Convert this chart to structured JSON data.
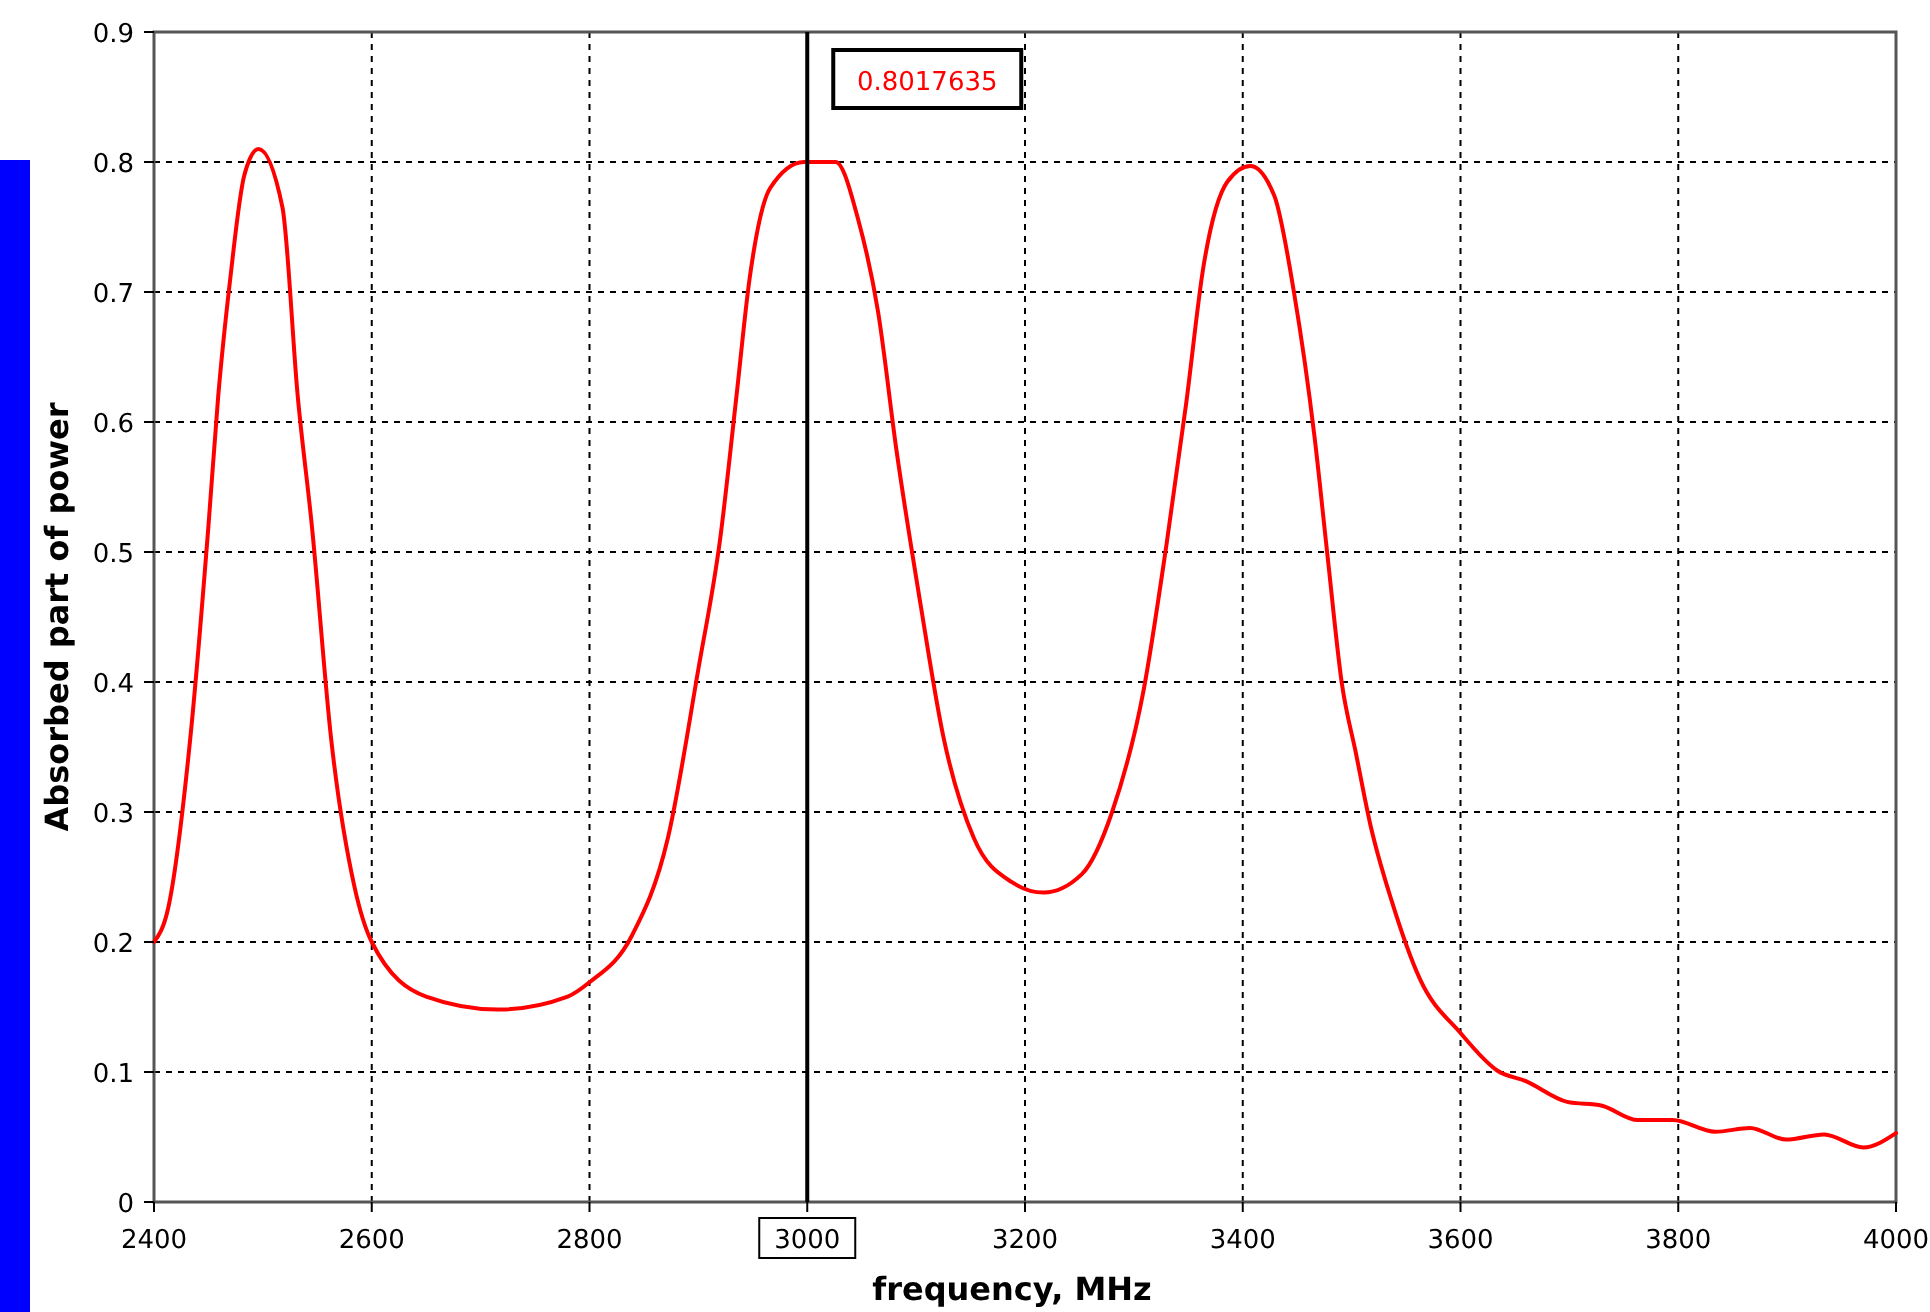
{
  "chart_data": {
    "type": "line",
    "xlabel": "frequency, MHz",
    "ylabel": "Absorbed part of power",
    "xlim": [
      2400,
      4000
    ],
    "ylim": [
      0,
      0.9
    ],
    "xticks": [
      2400,
      2600,
      2800,
      3000,
      3200,
      3400,
      3600,
      3800,
      4000
    ],
    "yticks": [
      0,
      0.1,
      0.2,
      0.3,
      0.4,
      0.5,
      0.6,
      0.7,
      0.8,
      0.9
    ],
    "grid": true,
    "marker": "none",
    "line_style": "solid",
    "ref_lines": [
      {
        "axis": "x",
        "value": 3000,
        "color": "#000000"
      }
    ],
    "annotations": [
      "0.8017635"
    ],
    "series": [
      {
        "color": "#ff0000",
        "x": [
          2400,
          2413,
          2433,
          2450,
          2459,
          2470,
          2483,
          2496,
          2518,
          2532,
          2545,
          2563,
          2584,
          2600,
          2650,
          2716,
          2780,
          2800,
          2839,
          2872,
          2900,
          2920,
          2935,
          2947,
          2966,
          2997,
          3000,
          3026,
          3047,
          3065,
          3082,
          3104,
          3125,
          3153,
          3188,
          3217,
          3252,
          3280,
          3309,
          3330,
          3348,
          3364,
          3386,
          3407,
          3429,
          3447,
          3466,
          3478,
          3491,
          3504,
          3517,
          3537,
          3563,
          3600,
          3634,
          3660,
          3698,
          3730,
          3763,
          3795,
          3834,
          3866,
          3899,
          3934,
          3970,
          4000
        ],
        "values": [
          0.2,
          0.226,
          0.354,
          0.52,
          0.62,
          0.71,
          0.79,
          0.81,
          0.765,
          0.62,
          0.52,
          0.354,
          0.243,
          0.2,
          0.158,
          0.148,
          0.158,
          0.169,
          0.205,
          0.28,
          0.41,
          0.51,
          0.62,
          0.71,
          0.78,
          0.8,
          0.8,
          0.8,
          0.755,
          0.685,
          0.578,
          0.46,
          0.358,
          0.28,
          0.246,
          0.238,
          0.252,
          0.3,
          0.394,
          0.506,
          0.614,
          0.72,
          0.785,
          0.797,
          0.774,
          0.7,
          0.588,
          0.496,
          0.399,
          0.345,
          0.291,
          0.231,
          0.171,
          0.13,
          0.101,
          0.093,
          0.077,
          0.074,
          0.063,
          0.063,
          0.054,
          0.057,
          0.048,
          0.052,
          0.042,
          0.053
        ]
      }
    ]
  }
}
